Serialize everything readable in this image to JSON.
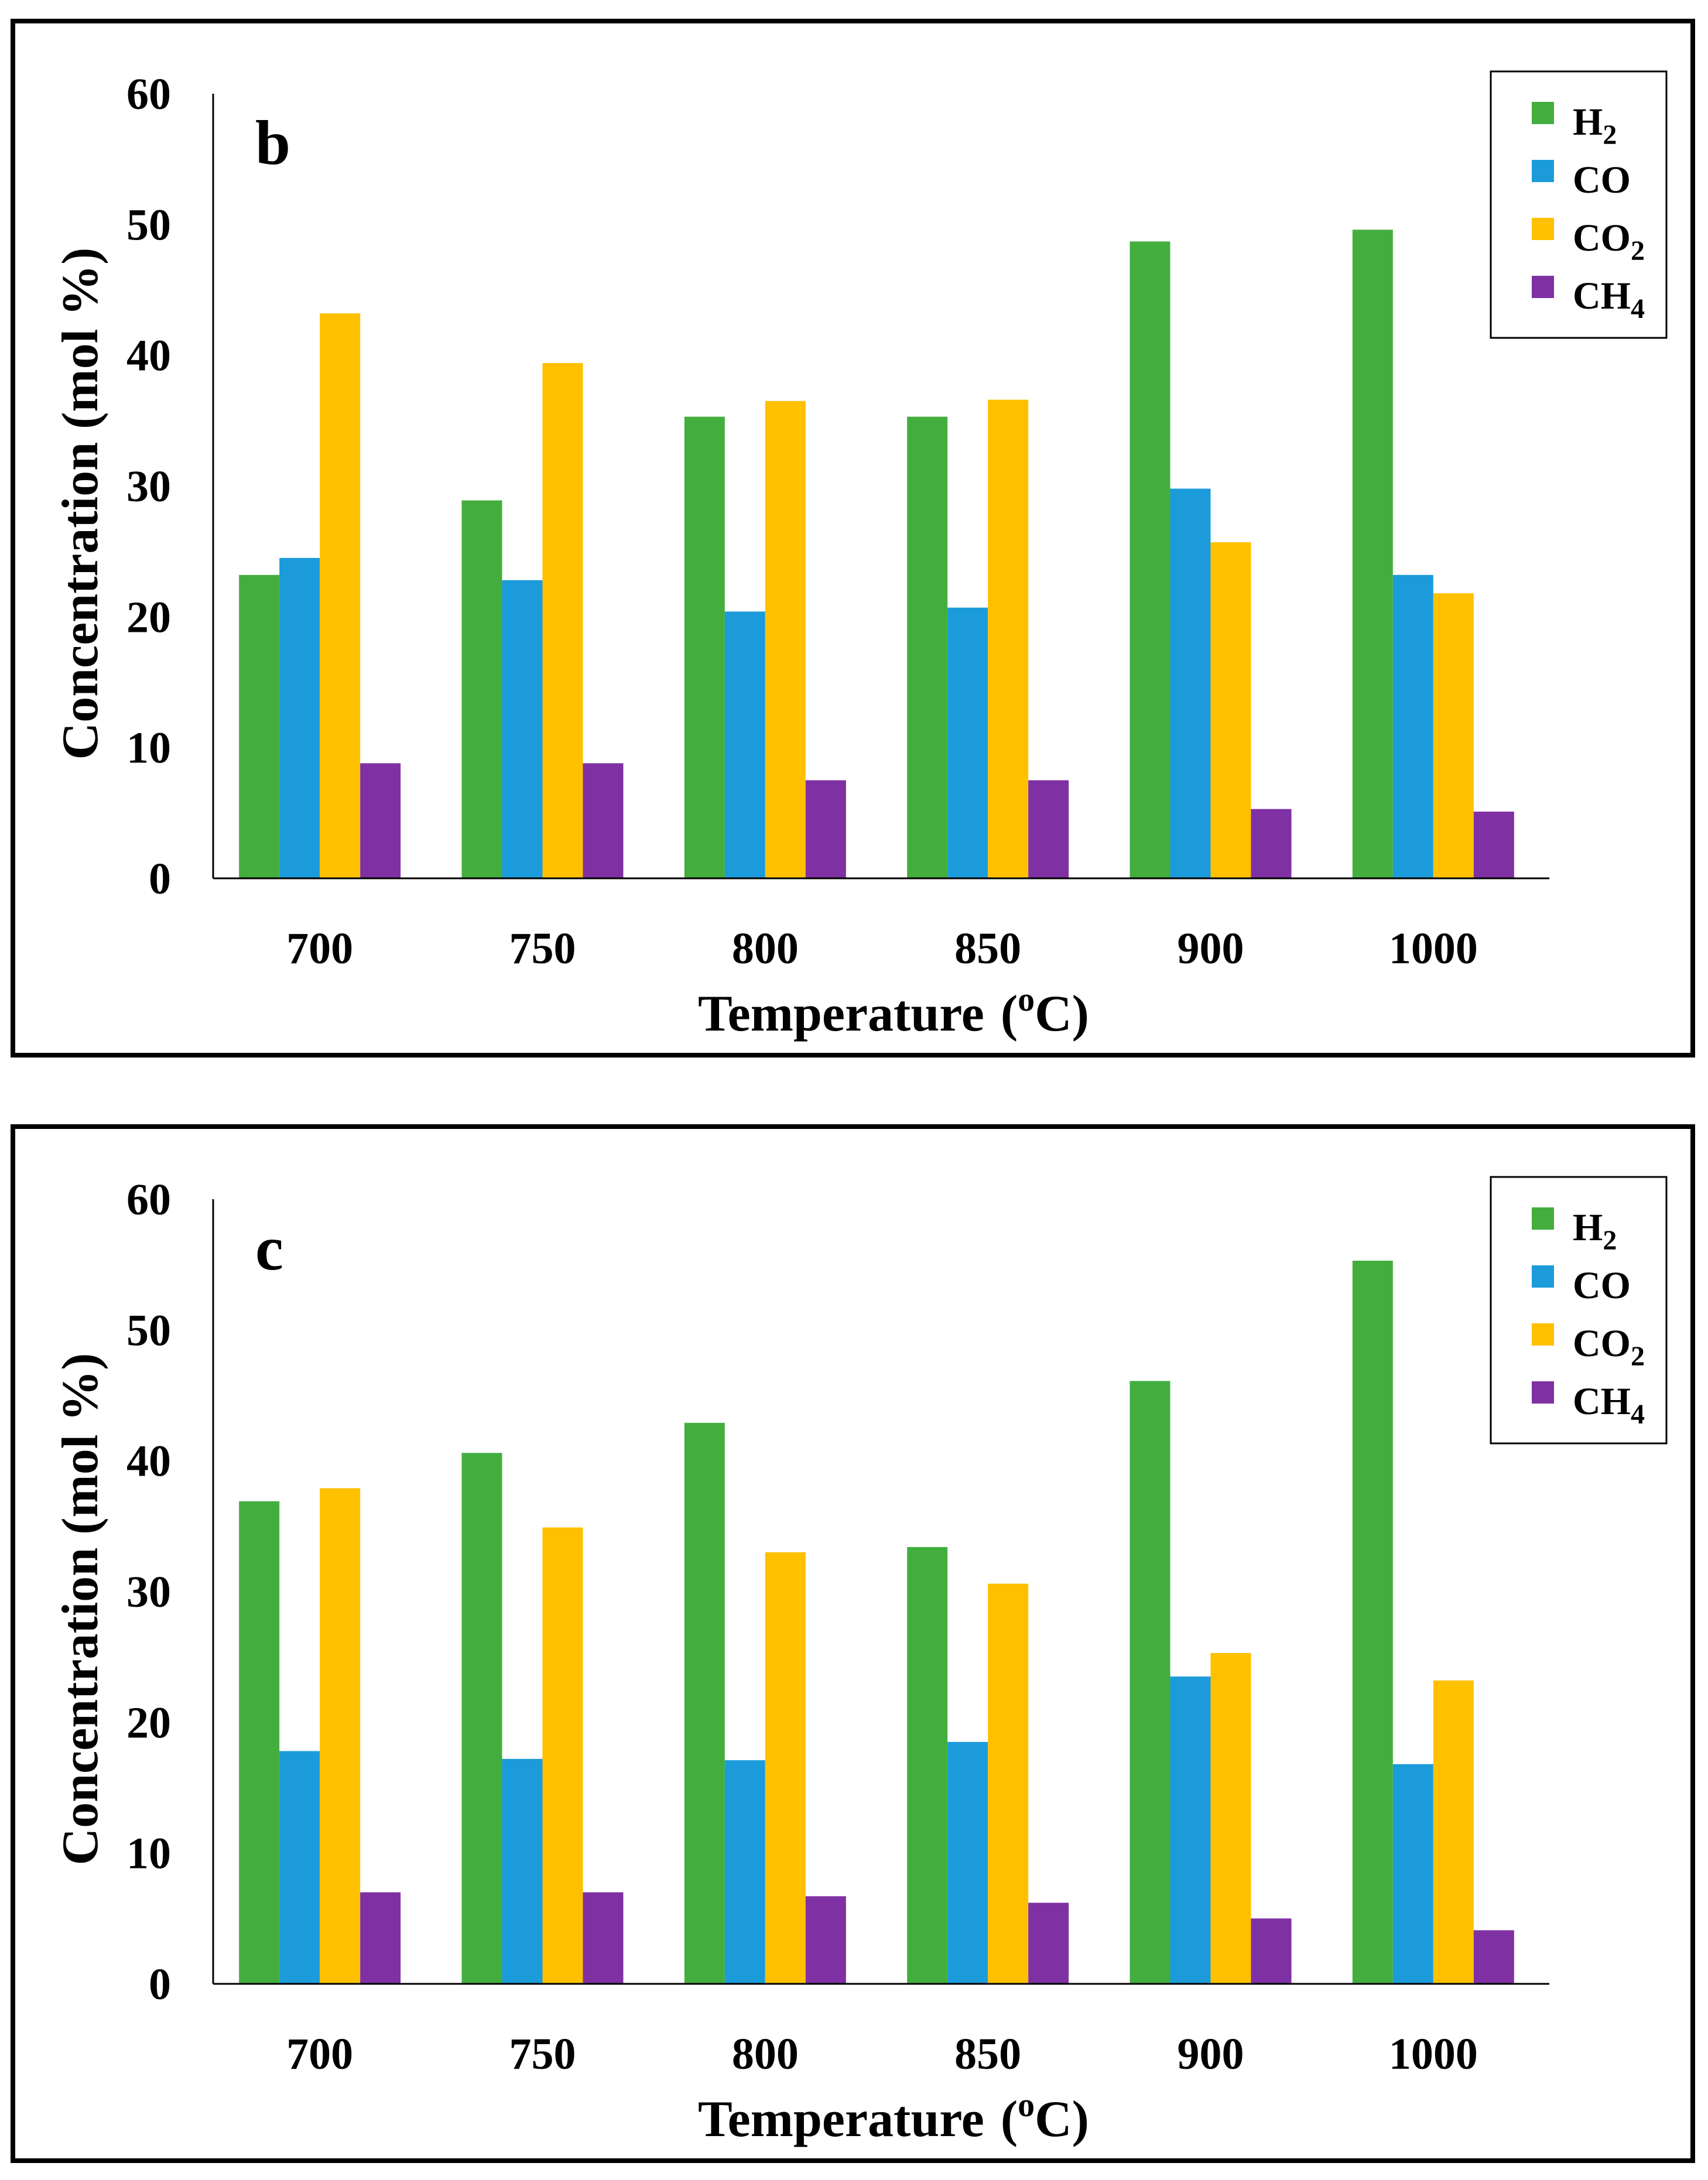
{
  "colors": {
    "H2": "#43AE3E",
    "CO": "#1C9BDB",
    "CO2": "#FFC000",
    "CH4": "#7F30A3",
    "axis": "#000000"
  },
  "chart_data": [
    {
      "type": "bar",
      "panel_label": "b",
      "xlabel": "Temperature",
      "xlabel_unit": "(oC)",
      "xlabel_unit_pre": "(",
      "xlabel_unit_sup": "o",
      "xlabel_unit_post": "C)",
      "ylabel": "Concentration (mol %)",
      "ylim": [
        0,
        60
      ],
      "yticks": [
        "0",
        "10",
        "20",
        "30",
        "40",
        "50",
        "60"
      ],
      "categories": [
        "700",
        "750",
        "800",
        "850",
        "900",
        "1000"
      ],
      "legend": [
        {
          "key": "H2",
          "base": "H",
          "sub": "2"
        },
        {
          "key": "CO",
          "base": "CO",
          "sub": ""
        },
        {
          "key": "CO2",
          "base": "CO",
          "sub": "2"
        },
        {
          "key": "CH4",
          "base": "CH",
          "sub": "4"
        }
      ],
      "legend_position": "top-right",
      "series": [
        {
          "name": "H2",
          "values": [
            23.2,
            28.9,
            35.3,
            35.3,
            48.7,
            49.6
          ]
        },
        {
          "name": "CO",
          "values": [
            24.5,
            22.8,
            20.4,
            20.7,
            29.8,
            23.2
          ]
        },
        {
          "name": "CO2",
          "values": [
            43.2,
            39.4,
            36.5,
            36.6,
            25.7,
            21.8
          ]
        },
        {
          "name": "CH4",
          "values": [
            8.8,
            8.8,
            7.5,
            7.5,
            5.3,
            5.1
          ]
        }
      ]
    },
    {
      "type": "bar",
      "panel_label": "c",
      "xlabel": "Temperature",
      "xlabel_unit": "(oC)",
      "xlabel_unit_pre": "(",
      "xlabel_unit_sup": "o",
      "xlabel_unit_post": "C)",
      "ylabel": "Concentration (mol %)",
      "ylim": [
        0,
        60
      ],
      "yticks": [
        "0",
        "10",
        "20",
        "30",
        "40",
        "50",
        "60"
      ],
      "categories": [
        "700",
        "750",
        "800",
        "850",
        "900",
        "1000"
      ],
      "legend": [
        {
          "key": "H2",
          "base": "H",
          "sub": "2"
        },
        {
          "key": "CO",
          "base": "CO",
          "sub": ""
        },
        {
          "key": "CO2",
          "base": "CO",
          "sub": "2"
        },
        {
          "key": "CH4",
          "base": "CH",
          "sub": "4"
        }
      ],
      "legend_position": "top-right",
      "series": [
        {
          "name": "H2",
          "values": [
            36.9,
            40.6,
            42.9,
            33.4,
            46.1,
            55.3
          ]
        },
        {
          "name": "CO",
          "values": [
            17.8,
            17.2,
            17.1,
            18.5,
            23.5,
            16.8
          ]
        },
        {
          "name": "CO2",
          "values": [
            37.9,
            34.9,
            33.0,
            30.6,
            25.3,
            23.2
          ]
        },
        {
          "name": "CH4",
          "values": [
            7.0,
            7.0,
            6.7,
            6.2,
            5.0,
            4.1
          ]
        }
      ]
    }
  ]
}
